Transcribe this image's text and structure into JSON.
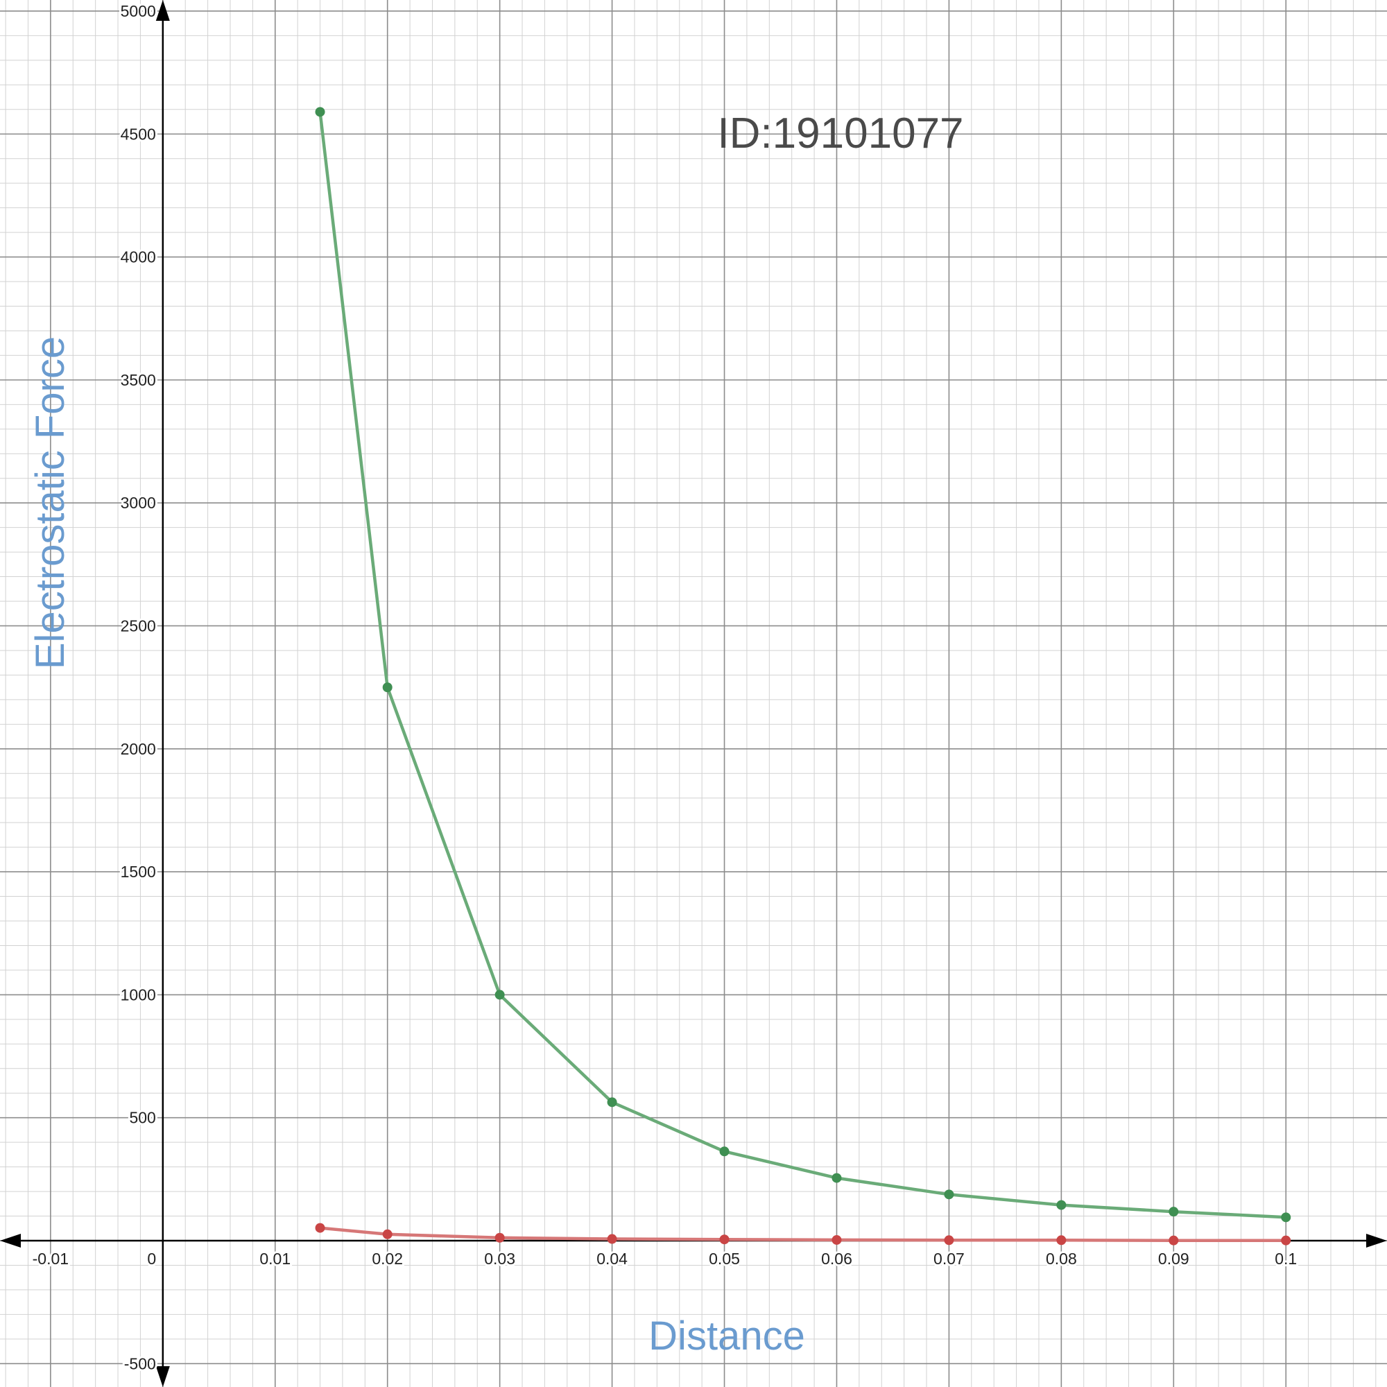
{
  "chart_data": {
    "type": "line",
    "annotation": "ID:19101077",
    "xlabel": "Distance",
    "ylabel": "Electrostatic Force",
    "xlim": [
      -0.0145,
      0.109
    ],
    "ylim": [
      -595,
      5045
    ],
    "grid": true,
    "x_ticks": [
      -0.01,
      0,
      0.01,
      0.02,
      0.03,
      0.04,
      0.05,
      0.06,
      0.07,
      0.08,
      0.09,
      0.1
    ],
    "x_tick_labels": [
      "-0.01",
      "0",
      "0.01",
      "0.02",
      "0.03",
      "0.04",
      "0.05",
      "0.06",
      "0.07",
      "0.08",
      "0.09",
      "0.1"
    ],
    "y_ticks": [
      -500,
      500,
      1000,
      1500,
      2000,
      2500,
      3000,
      3500,
      4000,
      4500,
      5000
    ],
    "y_tick_labels": [
      "-500",
      "500",
      "1000",
      "1500",
      "2000",
      "2500",
      "3000",
      "3500",
      "4000",
      "4500",
      "5000"
    ],
    "series": [
      {
        "color": "#6aab78",
        "point_color": "#3f8f52",
        "x": [
          0.014,
          0.02,
          0.03,
          0.04,
          0.05,
          0.06,
          0.07,
          0.08,
          0.09,
          0.1
        ],
        "y": [
          4590,
          2250,
          1000,
          563,
          363,
          255,
          188,
          145,
          118,
          95
        ]
      },
      {
        "color": "#d67777",
        "point_color": "#c94545",
        "x": [
          0.014,
          0.02,
          0.03,
          0.04,
          0.05,
          0.06,
          0.07,
          0.08,
          0.09,
          0.1
        ],
        "y": [
          52,
          26,
          12,
          7,
          5,
          3,
          2,
          2,
          1,
          1
        ]
      }
    ]
  }
}
